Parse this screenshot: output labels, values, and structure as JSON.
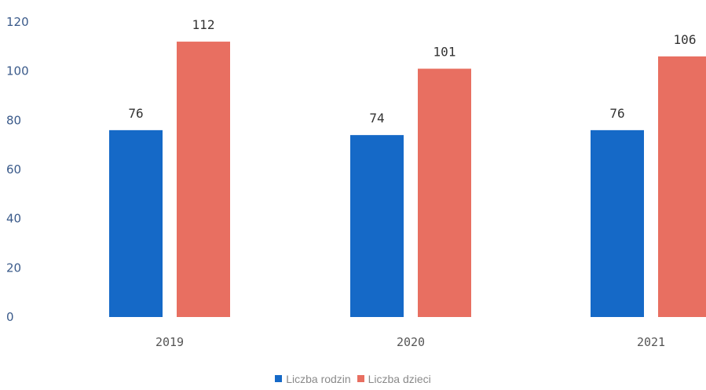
{
  "chart_data": {
    "type": "bar",
    "categories": [
      "2019",
      "2020",
      "2021"
    ],
    "series": [
      {
        "name": "Liczba rodzin",
        "values": [
          76,
          74,
          76
        ],
        "color": "#1569C7"
      },
      {
        "name": "Liczba dzieci",
        "values": [
          112,
          101,
          106
        ],
        "color": "#E86F61"
      }
    ],
    "y_ticks": [
      "0",
      "20",
      "40",
      "60",
      "80",
      "100",
      "120"
    ],
    "ylim": [
      0,
      120
    ],
    "grid": false,
    "legend_position": "bottom-center",
    "title": "",
    "xlabel": "",
    "ylabel": ""
  }
}
